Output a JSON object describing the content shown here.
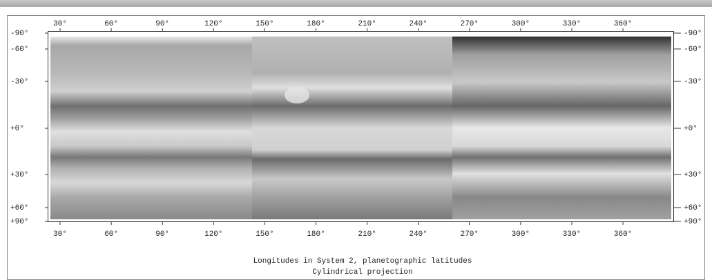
{
  "map": {
    "longitude_labels": [
      "30°",
      "60°",
      "90°",
      "120°",
      "150°",
      "180°",
      "210°",
      "240°",
      "270°",
      "300°",
      "330°",
      "360°"
    ],
    "latitude_labels": [
      "-90°",
      "-60°",
      "-30°",
      "+0°",
      "+30°",
      "+60°",
      "+90°"
    ],
    "caption": [
      "Longitudes in System 2, planetographic latitudes",
      "Cylindrical projection"
    ]
  }
}
